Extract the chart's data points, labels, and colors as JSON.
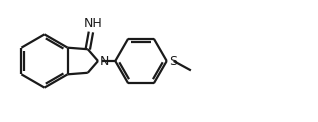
{
  "background_color": "#ffffff",
  "line_color": "#1a1a1a",
  "line_width": 1.6,
  "text_color": "#1a1a1a",
  "font_size": 8.5,
  "figsize": [
    3.18,
    1.22
  ],
  "dpi": 100,
  "xlim": [
    0,
    10.0
  ],
  "ylim": [
    0,
    3.8
  ]
}
